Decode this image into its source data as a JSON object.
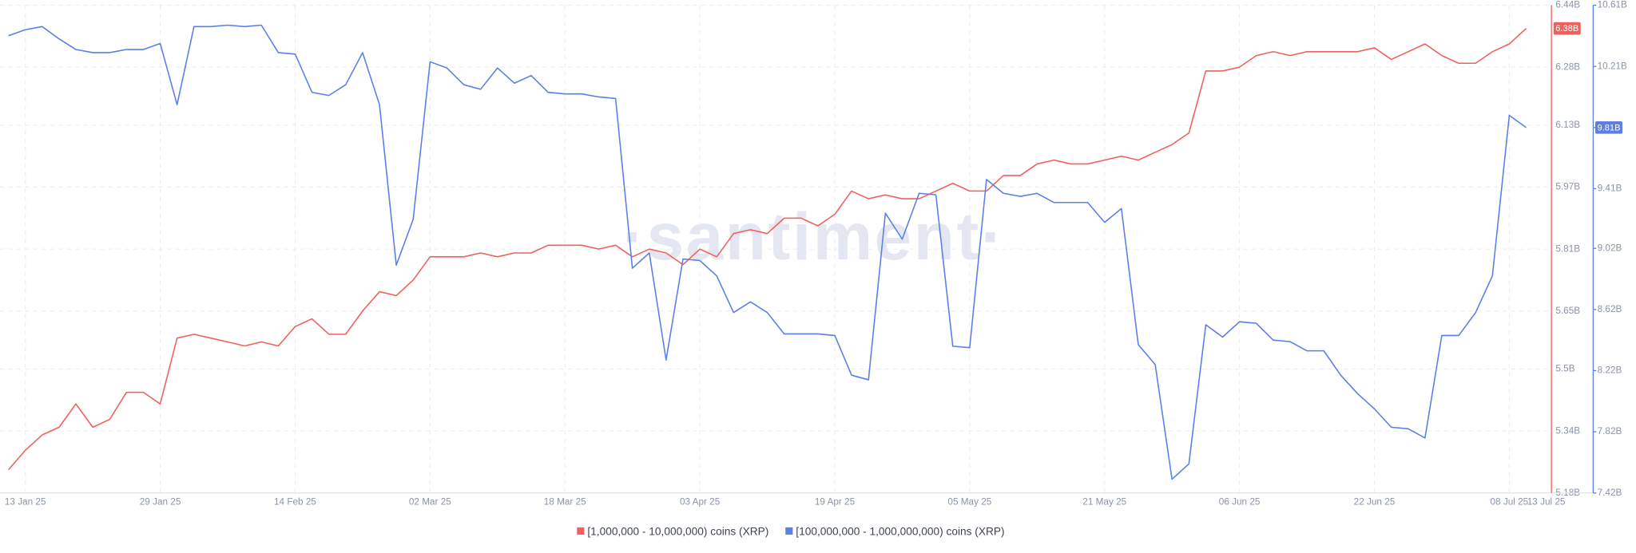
{
  "chart_data": {
    "type": "line",
    "watermark": "·santiment·",
    "x": [
      "2025-01-11",
      "2025-01-13",
      "2025-01-15",
      "2025-01-17",
      "2025-01-19",
      "2025-01-21",
      "2025-01-23",
      "2025-01-25",
      "2025-01-27",
      "2025-01-29",
      "2025-01-31",
      "2025-02-02",
      "2025-02-04",
      "2025-02-06",
      "2025-02-08",
      "2025-02-10",
      "2025-02-12",
      "2025-02-14",
      "2025-02-16",
      "2025-02-18",
      "2025-02-20",
      "2025-02-22",
      "2025-02-24",
      "2025-02-26",
      "2025-02-28",
      "2025-03-02",
      "2025-03-04",
      "2025-03-06",
      "2025-03-08",
      "2025-03-10",
      "2025-03-12",
      "2025-03-14",
      "2025-03-16",
      "2025-03-18",
      "2025-03-20",
      "2025-03-22",
      "2025-03-24",
      "2025-03-26",
      "2025-03-28",
      "2025-03-30",
      "2025-04-01",
      "2025-04-03",
      "2025-04-05",
      "2025-04-07",
      "2025-04-09",
      "2025-04-11",
      "2025-04-13",
      "2025-04-15",
      "2025-04-17",
      "2025-04-19",
      "2025-04-21",
      "2025-04-23",
      "2025-04-25",
      "2025-04-27",
      "2025-04-29",
      "2025-05-01",
      "2025-05-03",
      "2025-05-05",
      "2025-05-07",
      "2025-05-09",
      "2025-05-11",
      "2025-05-13",
      "2025-05-15",
      "2025-05-17",
      "2025-05-19",
      "2025-05-21",
      "2025-05-23",
      "2025-05-25",
      "2025-05-27",
      "2025-05-29",
      "2025-05-31",
      "2025-06-02",
      "2025-06-04",
      "2025-06-06",
      "2025-06-08",
      "2025-06-10",
      "2025-06-12",
      "2025-06-14",
      "2025-06-16",
      "2025-06-18",
      "2025-06-20",
      "2025-06-22",
      "2025-06-24",
      "2025-06-26",
      "2025-06-28",
      "2025-06-30",
      "2025-07-02",
      "2025-07-04",
      "2025-07-06",
      "2025-07-08",
      "2025-07-10"
    ],
    "xlim": [
      "2025-01-10",
      "2025-07-13"
    ],
    "xticks": [
      {
        "value": "2025-01-13",
        "label": "13 Jan 25"
      },
      {
        "value": "2025-01-29",
        "label": "29 Jan 25"
      },
      {
        "value": "2025-02-14",
        "label": "14 Feb 25"
      },
      {
        "value": "2025-03-02",
        "label": "02 Mar 25"
      },
      {
        "value": "2025-03-18",
        "label": "18 Mar 25"
      },
      {
        "value": "2025-04-03",
        "label": "03 Apr 25"
      },
      {
        "value": "2025-04-19",
        "label": "19 Apr 25"
      },
      {
        "value": "2025-05-05",
        "label": "05 May 25"
      },
      {
        "value": "2025-05-21",
        "label": "21 May 25"
      },
      {
        "value": "2025-06-06",
        "label": "06 Jun 25"
      },
      {
        "value": "2025-06-22",
        "label": "22 Jun 25"
      },
      {
        "value": "2025-07-08",
        "label": "08 Jul 25"
      },
      {
        "value": "2025-07-13",
        "label": "13 Jul 25"
      }
    ],
    "ylim": [
      5.18,
      6.44
    ],
    "yticks": [
      {
        "value": 5.18,
        "label": "5.18B"
      },
      {
        "value": 5.34,
        "label": "5.34B"
      },
      {
        "value": 5.5,
        "label": "5.5B"
      },
      {
        "value": 5.65,
        "label": "5.65B"
      },
      {
        "value": 5.81,
        "label": "5.81B"
      },
      {
        "value": 5.97,
        "label": "5.97B"
      },
      {
        "value": 6.13,
        "label": "6.13B"
      },
      {
        "value": 6.28,
        "label": "6.28B"
      },
      {
        "value": 6.44,
        "label": "6.44B"
      }
    ],
    "y2lim": [
      7.42,
      10.61
    ],
    "y2ticks": [
      {
        "value": 7.42,
        "label": "7.42B"
      },
      {
        "value": 7.82,
        "label": "7.82B"
      },
      {
        "value": 8.22,
        "label": "8.22B"
      },
      {
        "value": 8.62,
        "label": "8.62B"
      },
      {
        "value": 9.02,
        "label": "9.02B"
      },
      {
        "value": 9.41,
        "label": "9.41B"
      },
      {
        "value": 9.81,
        "label": "9.81B"
      },
      {
        "value": 10.21,
        "label": "10.21B"
      },
      {
        "value": 10.61,
        "label": "10.61B"
      }
    ],
    "grid": true,
    "series": [
      {
        "name": "[1,000,000 - 10,000,000) coins (XRP)",
        "color": "#f0605d",
        "axis": "y",
        "last_label": "6.38B",
        "values": [
          5.24,
          5.29,
          5.33,
          5.35,
          5.41,
          5.35,
          5.37,
          5.44,
          5.44,
          5.41,
          5.58,
          5.59,
          5.58,
          5.57,
          5.56,
          5.57,
          5.56,
          5.61,
          5.63,
          5.59,
          5.59,
          5.65,
          5.7,
          5.69,
          5.73,
          5.79,
          5.79,
          5.79,
          5.8,
          5.79,
          5.8,
          5.8,
          5.82,
          5.82,
          5.82,
          5.81,
          5.82,
          5.79,
          5.81,
          5.8,
          5.77,
          5.81,
          5.79,
          5.85,
          5.86,
          5.85,
          5.89,
          5.89,
          5.87,
          5.9,
          5.96,
          5.94,
          5.95,
          5.94,
          5.94,
          5.96,
          5.98,
          5.96,
          5.96,
          6.0,
          6.0,
          6.03,
          6.04,
          6.03,
          6.03,
          6.04,
          6.05,
          6.04,
          6.06,
          6.08,
          6.11,
          6.27,
          6.27,
          6.28,
          6.31,
          6.32,
          6.31,
          6.32,
          6.32,
          6.32,
          6.32,
          6.33,
          6.3,
          6.32,
          6.34,
          6.31,
          6.29,
          6.29,
          6.32,
          6.34,
          6.38
        ]
      },
      {
        "name": "[100,000,000 - 1,000,000,000) coins (XRP)",
        "color": "#5a7fe6",
        "axis": "y2",
        "last_label": "9.81B",
        "values": [
          10.41,
          10.45,
          10.47,
          10.39,
          10.32,
          10.3,
          10.3,
          10.32,
          10.32,
          10.36,
          9.96,
          10.47,
          10.47,
          10.48,
          10.47,
          10.48,
          10.3,
          10.29,
          10.04,
          10.02,
          10.09,
          10.3,
          9.96,
          8.91,
          9.21,
          10.24,
          10.2,
          10.09,
          10.06,
          10.2,
          10.1,
          10.15,
          10.04,
          10.03,
          10.03,
          10.01,
          10.0,
          8.89,
          8.99,
          8.29,
          8.95,
          8.94,
          8.84,
          8.6,
          8.67,
          8.6,
          8.46,
          8.46,
          8.46,
          8.45,
          8.19,
          8.16,
          9.25,
          9.08,
          9.38,
          9.37,
          8.38,
          8.37,
          9.47,
          9.38,
          9.36,
          9.38,
          9.32,
          9.32,
          9.32,
          9.19,
          9.28,
          8.39,
          8.26,
          7.51,
          7.61,
          8.52,
          8.44,
          8.54,
          8.53,
          8.42,
          8.41,
          8.35,
          8.35,
          8.19,
          8.07,
          7.97,
          7.85,
          7.84,
          7.78,
          8.45,
          8.45,
          8.6,
          8.84,
          9.89,
          9.81
        ]
      }
    ]
  }
}
